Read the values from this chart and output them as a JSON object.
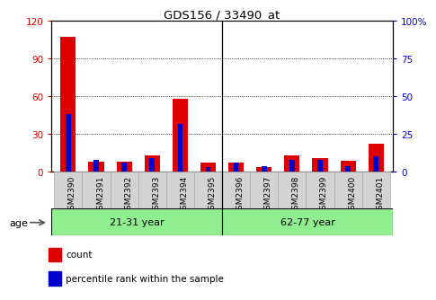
{
  "title": "GDS156 / 33490_at",
  "categories": [
    "GSM2390",
    "GSM2391",
    "GSM2392",
    "GSM2393",
    "GSM2394",
    "GSM2395",
    "GSM2396",
    "GSM2397",
    "GSM2398",
    "GSM2399",
    "GSM2400",
    "GSM2401"
  ],
  "count_values": [
    107,
    8,
    8,
    13,
    58,
    7,
    7,
    4,
    13,
    11,
    9,
    22
  ],
  "percentile_values": [
    38,
    8,
    6,
    9,
    32,
    3,
    6,
    4,
    8,
    8,
    4,
    10
  ],
  "count_color": "#dd0000",
  "percentile_color": "#0000cc",
  "ylim_left": [
    0,
    120
  ],
  "ylim_right": [
    0,
    100
  ],
  "yticks_left": [
    0,
    30,
    60,
    90,
    120
  ],
  "yticks_right": [
    0,
    25,
    50,
    75,
    100
  ],
  "ytick_labels_right": [
    "0",
    "25",
    "50",
    "75",
    "100%"
  ],
  "group1_label": "21-31 year",
  "group2_label": "62-77 year",
  "age_label": "age",
  "legend_count": "count",
  "legend_percentile": "percentile rank within the sample",
  "group_bg_color": "#90ee90",
  "tick_bg_color": "#d3d3d3",
  "count_bar_width": 0.55,
  "pct_bar_width": 0.18,
  "count_color_left": "#dd0000",
  "count_color_right": "#0000cc"
}
